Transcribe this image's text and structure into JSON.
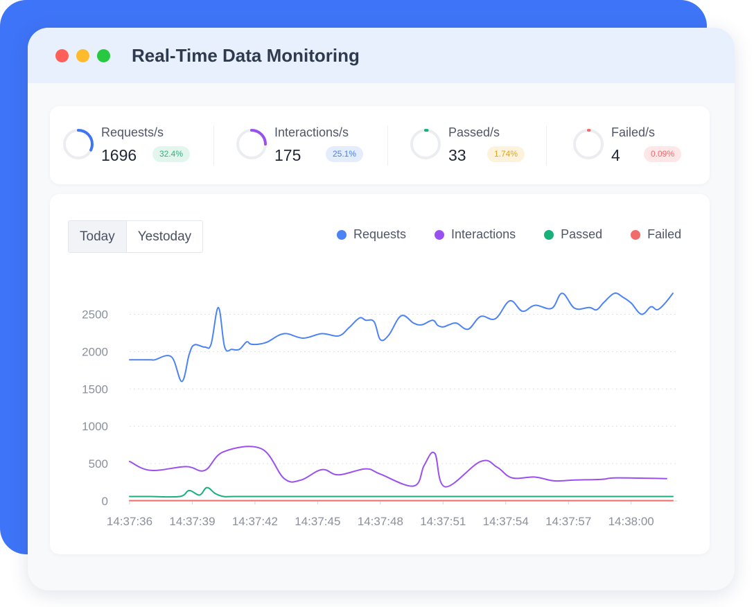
{
  "window": {
    "title": "Real-Time Data Monitoring"
  },
  "stats": [
    {
      "label": "Requests/s",
      "value": "1696",
      "badge": "32.4%",
      "ring_fraction": 0.32,
      "color": "#3e74f7",
      "badge_bg": "#e3f6ee",
      "badge_color": "#2fb27c"
    },
    {
      "label": "Interactions/s",
      "value": "175",
      "badge": "25.1%",
      "ring_fraction": 0.25,
      "color": "#9a50f0",
      "badge_bg": "#e3edfc",
      "badge_color": "#4b7fe6"
    },
    {
      "label": "Passed/s",
      "value": "33",
      "badge": "1.74%",
      "ring_fraction": 0.02,
      "color": "#19b07a",
      "badge_bg": "#fdf3dc",
      "badge_color": "#e3a417"
    },
    {
      "label": "Failed/s",
      "value": "4",
      "badge": "0.09%",
      "ring_fraction": 0.01,
      "color": "#f26b6b",
      "badge_bg": "#fde7e7",
      "badge_color": "#f0686a"
    }
  ],
  "tabs": [
    {
      "label": "Today",
      "active": true
    },
    {
      "label": "Yestoday",
      "active": false
    }
  ],
  "chart_data": {
    "type": "line",
    "x_ticks": [
      "14:37:36",
      "14:37:39",
      "14:37:42",
      "14:37:45",
      "14:37:48",
      "14:37:51",
      "14:37:54",
      "14:37:57",
      "14:38:00"
    ],
    "y_ticks": [
      0,
      500,
      1000,
      1500,
      2000,
      2500
    ],
    "ylim": [
      0,
      2800
    ],
    "xlim": [
      0,
      26.2
    ],
    "grid": true,
    "legend_position": "top-right",
    "series": [
      {
        "name": "Requests",
        "color": "#4b82f5",
        "x": [
          0,
          1,
          1.2,
          2,
          2.5,
          2.85,
          3.1,
          3.6,
          3.9,
          4.25,
          4.55,
          4.9,
          5.25,
          5.6,
          5.8,
          6.2,
          6.6,
          7.4,
          8.3,
          9.2,
          10,
          10.5,
          11,
          11.3,
          11.7,
          12,
          12.4,
          13,
          13.6,
          14,
          14.5,
          14.75,
          15,
          15.3,
          15.65,
          16.2,
          16.8,
          17.5,
          18.2,
          18.8,
          19.4,
          20.2,
          20.7,
          21.3,
          22,
          22.35,
          22.7,
          23.2,
          23.6,
          24,
          24.5,
          24.95,
          25.25,
          25.6,
          26
        ],
        "y": [
          1890,
          1890,
          1890,
          1930,
          1600,
          1960,
          2090,
          2060,
          2100,
          2590,
          2060,
          2030,
          2030,
          2130,
          2100,
          2100,
          2130,
          2240,
          2180,
          2240,
          2210,
          2320,
          2450,
          2420,
          2400,
          2160,
          2220,
          2480,
          2380,
          2360,
          2420,
          2350,
          2330,
          2360,
          2380,
          2300,
          2470,
          2440,
          2680,
          2540,
          2620,
          2580,
          2780,
          2580,
          2590,
          2560,
          2660,
          2780,
          2730,
          2650,
          2500,
          2600,
          2560,
          2640,
          2780
        ]
      },
      {
        "name": "Interactions",
        "color": "#9a50f0",
        "x": [
          0,
          1,
          2.7,
          3.6,
          4.5,
          6.3,
          7.4,
          8.2,
          9.2,
          10,
          11.3,
          12,
          13.6,
          14.1,
          14.6,
          15.1,
          16.8,
          17.6,
          18.3,
          19.4,
          20.3,
          21.3,
          22.6,
          23.3,
          25.7
        ],
        "y": [
          530,
          410,
          460,
          410,
          660,
          700,
          300,
          280,
          420,
          350,
          430,
          360,
          200,
          480,
          640,
          190,
          530,
          450,
          310,
          320,
          270,
          280,
          290,
          310,
          300
        ]
      },
      {
        "name": "Passed",
        "color": "#19b07a",
        "x": [
          0,
          1,
          2.4,
          2.85,
          3.35,
          3.7,
          4.1,
          4.5,
          5,
          7,
          10,
          15,
          20,
          26
        ],
        "y": [
          60,
          60,
          60,
          140,
          80,
          180,
          100,
          60,
          60,
          60,
          60,
          60,
          60,
          60
        ]
      },
      {
        "name": "Failed",
        "color": "#f26b6b",
        "x": [
          0,
          26
        ],
        "y": [
          5,
          5
        ]
      }
    ]
  }
}
